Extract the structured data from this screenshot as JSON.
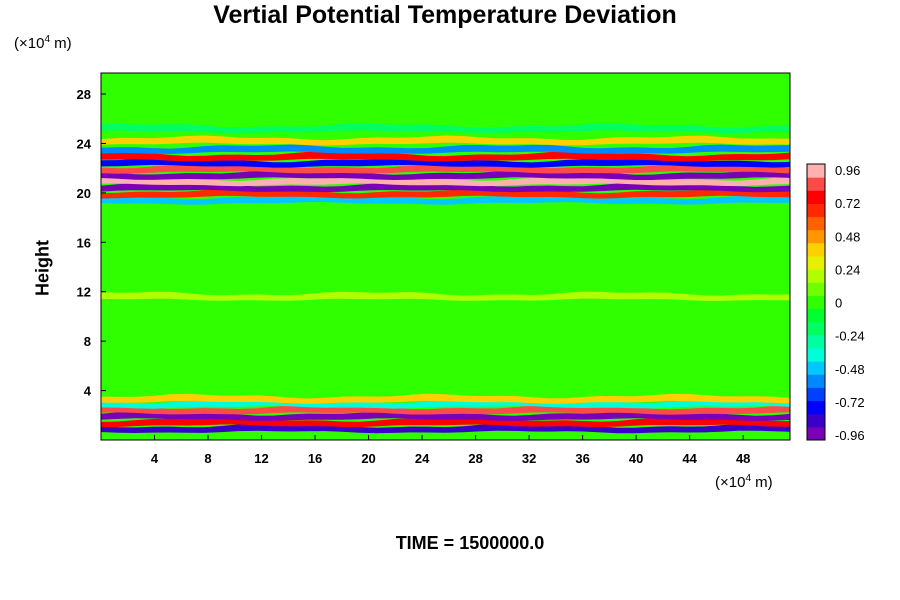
{
  "chart_data": {
    "type": "heatmap",
    "title": "Vertial Potential Temperature Deviation",
    "ylabel": "Height",
    "x_unit": {
      "prefix": "(×10",
      "exp": "4",
      "suffix": " m)"
    },
    "y_unit": {
      "prefix": "(×10",
      "exp": "4",
      "suffix": " m)"
    },
    "xlim": [
      0,
      51.5
    ],
    "ylim": [
      0,
      29.7
    ],
    "xticks": [
      4,
      8,
      12,
      16,
      20,
      24,
      28,
      32,
      36,
      40,
      44,
      48
    ],
    "yticks": [
      4,
      8,
      12,
      16,
      20,
      24,
      28
    ],
    "colorbar": {
      "range": [
        -0.96,
        0.96
      ],
      "labels": [
        "0.96",
        "0.72",
        "0.48",
        "0.24",
        "0",
        "-0.24",
        "-0.48",
        "-0.72",
        "-0.96"
      ],
      "colors": [
        "#7a00b8",
        "#3a00c8",
        "#0000ff",
        "#0040ff",
        "#0088ff",
        "#00c8ff",
        "#00ffd8",
        "#00ffa0",
        "#00ff60",
        "#00ff30",
        "#30ff00",
        "#70ff00",
        "#b0ff00",
        "#e8f000",
        "#ffd000",
        "#ff9800",
        "#ff6000",
        "#ff2800",
        "#ff0000",
        "#ff4a4a",
        "#ffb0b0"
      ]
    },
    "background_value": 0.03,
    "bands": [
      {
        "y": 0.9,
        "value": -0.8
      },
      {
        "y": 1.4,
        "value": 0.7
      },
      {
        "y": 1.9,
        "value": -0.9
      },
      {
        "y": 2.4,
        "value": 0.85
      },
      {
        "y": 2.9,
        "value": -0.4
      },
      {
        "y": 3.3,
        "value": 0.35
      },
      {
        "y": 11.6,
        "value": 0.2
      },
      {
        "y": 19.4,
        "value": -0.45
      },
      {
        "y": 19.9,
        "value": 0.6
      },
      {
        "y": 20.4,
        "value": -0.95
      },
      {
        "y": 20.9,
        "value": 0.96
      },
      {
        "y": 21.4,
        "value": -0.96
      },
      {
        "y": 21.9,
        "value": 0.8
      },
      {
        "y": 22.4,
        "value": -0.7
      },
      {
        "y": 22.9,
        "value": 0.7
      },
      {
        "y": 23.5,
        "value": -0.55
      },
      {
        "y": 24.2,
        "value": 0.4
      },
      {
        "y": 25.2,
        "value": -0.2
      }
    ],
    "annotation": "TIME = 1500000.0"
  }
}
